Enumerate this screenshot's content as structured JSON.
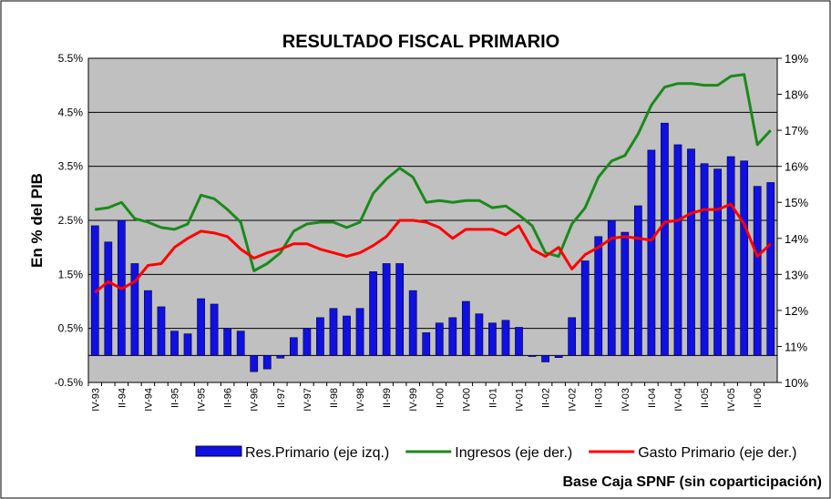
{
  "chart_data": {
    "type": "bar_line",
    "title": "RESULTADO FISCAL PRIMARIO",
    "y_label": "En % del PIB",
    "footnote": "Base Caja SPNF (sin coparticipación)",
    "categories": [
      "IV-93",
      null,
      "II-94",
      null,
      "IV-94",
      null,
      "II-95",
      null,
      "IV-95",
      null,
      "II-96",
      null,
      "IV-96",
      null,
      "II-97",
      null,
      "IV-97",
      null,
      "II-98",
      null,
      "IV-98",
      null,
      "II-99",
      null,
      "IV-99",
      null,
      "II-00",
      null,
      "IV-00",
      null,
      "II-01",
      null,
      "IV-01",
      null,
      "II-02",
      null,
      "IV-02",
      null,
      "II-03",
      null,
      "IV-03",
      null,
      "II-04",
      null,
      "IV-04",
      null,
      "II-05",
      null,
      "IV-05",
      null,
      "II-06",
      null
    ],
    "series": [
      {
        "name": "Res.Primario (eje izq.)",
        "type": "bar",
        "color": "#1010e0",
        "axis": "y",
        "values": [
          2.4,
          2.1,
          2.5,
          1.7,
          1.2,
          0.9,
          0.45,
          0.4,
          1.05,
          0.95,
          0.5,
          0.45,
          -0.3,
          -0.25,
          -0.05,
          0.33,
          0.5,
          0.7,
          0.87,
          0.73,
          0.87,
          1.55,
          1.7,
          1.7,
          1.2,
          0.42,
          0.6,
          0.7,
          1.0,
          0.77,
          0.6,
          0.65,
          0.52,
          -0.02,
          -0.12,
          -0.04,
          0.7,
          1.75,
          2.2,
          2.5,
          2.28,
          2.77,
          3.8,
          4.3,
          3.9,
          3.82,
          3.55,
          3.45,
          3.68,
          3.6,
          3.13,
          3.2
        ]
      },
      {
        "name": "Ingresos (eje der.)",
        "type": "line",
        "color": "#1a8a1a",
        "axis": "y2",
        "values": [
          14.8,
          14.85,
          15.0,
          14.55,
          14.45,
          14.3,
          14.25,
          14.4,
          15.2,
          15.1,
          14.8,
          14.45,
          13.1,
          13.3,
          13.6,
          14.2,
          14.4,
          14.45,
          14.45,
          14.3,
          14.45,
          15.25,
          15.65,
          15.95,
          15.7,
          15.0,
          15.05,
          15.0,
          15.05,
          15.05,
          14.85,
          14.9,
          14.65,
          14.35,
          13.6,
          13.5,
          14.4,
          14.85,
          15.7,
          16.15,
          16.3,
          16.9,
          17.7,
          18.2,
          18.3,
          18.3,
          18.25,
          18.25,
          18.5,
          18.55,
          16.6,
          17.0
        ]
      },
      {
        "name": "Gasto Primario (eje der.)",
        "type": "line",
        "color": "#ff0000",
        "axis": "y2",
        "values": [
          12.5,
          12.8,
          12.6,
          12.8,
          13.25,
          13.3,
          13.75,
          14.0,
          14.2,
          14.15,
          14.05,
          13.7,
          13.45,
          13.6,
          13.7,
          13.85,
          13.85,
          13.7,
          13.6,
          13.5,
          13.6,
          13.8,
          14.05,
          14.5,
          14.5,
          14.45,
          14.3,
          14.0,
          14.25,
          14.25,
          14.25,
          14.1,
          14.35,
          13.7,
          13.5,
          13.75,
          13.15,
          13.55,
          13.75,
          14.0,
          14.05,
          14.0,
          13.95,
          14.45,
          14.5,
          14.7,
          14.8,
          14.8,
          14.95,
          14.4,
          13.5,
          13.85
        ]
      }
    ],
    "ylim": [
      -0.5,
      5.5
    ],
    "yticks": [
      {
        "value": -0.5,
        "label": "-0.5%"
      },
      {
        "value": 0.5,
        "label": "0.5%"
      },
      {
        "value": 1.5,
        "label": "1.5%"
      },
      {
        "value": 2.5,
        "label": "2.5%"
      },
      {
        "value": 3.5,
        "label": "3.5%"
      },
      {
        "value": 4.5,
        "label": "4.5%"
      },
      {
        "value": 5.5,
        "label": "5.5%"
      }
    ],
    "y2lim": [
      10,
      19
    ],
    "y2ticks": [
      {
        "value": 10,
        "label": "10%"
      },
      {
        "value": 11,
        "label": "11%"
      },
      {
        "value": 12,
        "label": "12%"
      },
      {
        "value": 13,
        "label": "13%"
      },
      {
        "value": 14,
        "label": "14%"
      },
      {
        "value": 15,
        "label": "15%"
      },
      {
        "value": 16,
        "label": "16%"
      },
      {
        "value": 17,
        "label": "17%"
      },
      {
        "value": 18,
        "label": "18%"
      },
      {
        "value": 19,
        "label": "19%"
      }
    ],
    "grid": true,
    "plot_background": "#c0c0c0"
  }
}
